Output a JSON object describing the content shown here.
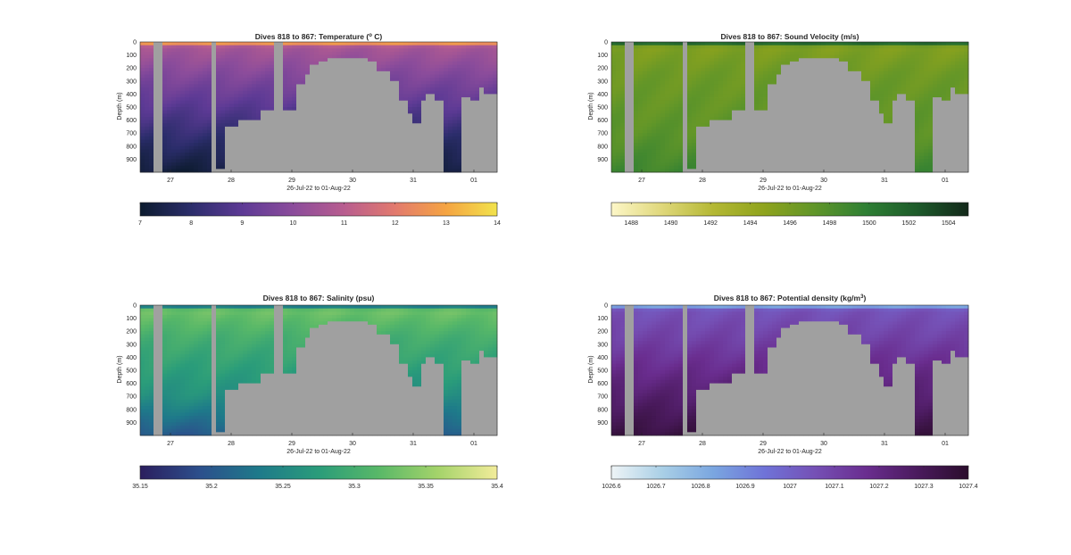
{
  "chart_data": [
    {
      "type": "heatmap",
      "title": "Dives 818 to 867: Temperature (",
      "title_sup": "o",
      "title_suffix": " C)",
      "xlabel": "26-Jul-22 to 01-Aug-22",
      "ylabel": "Depth (m)",
      "ylim": [
        1000,
        0
      ],
      "yticks": [
        0,
        100,
        200,
        300,
        400,
        500,
        600,
        700,
        800,
        900
      ],
      "xticks": [
        "27",
        "28",
        "29",
        "30",
        "31",
        "01"
      ],
      "colorbar": {
        "range": [
          7,
          14
        ],
        "ticks": [
          "7",
          "8",
          "9",
          "10",
          "11",
          "12",
          "13",
          "14"
        ],
        "colors": [
          "#0c1b2e",
          "#2b2d6b",
          "#5d3a95",
          "#8b4c9b",
          "#b85d8f",
          "#e27a6e",
          "#f5a442",
          "#f2e34c"
        ]
      },
      "variable": "temperature",
      "unit": "°C",
      "surface_value": 13.5,
      "upper_value": 10.6,
      "mid_value": 9.8,
      "deep_value": 8.2,
      "bottom_value": 7.2
    },
    {
      "type": "heatmap",
      "title": "Dives 818 to 867: Sound Velocity (m/s)",
      "xlabel": "26-Jul-22 to 01-Aug-22",
      "ylabel": "Depth (m)",
      "ylim": [
        1000,
        0
      ],
      "yticks": [
        0,
        100,
        200,
        300,
        400,
        500,
        600,
        700,
        800,
        900
      ],
      "xticks": [
        "27",
        "28",
        "29",
        "30",
        "31",
        "01"
      ],
      "colorbar": {
        "range": [
          1487,
          1505
        ],
        "ticks": [
          "1488",
          "1490",
          "1492",
          "1494",
          "1496",
          "1498",
          "1500",
          "1502",
          "1504"
        ],
        "colors": [
          "#fdf7c8",
          "#dfd77a",
          "#b4b834",
          "#8ea31d",
          "#5f9529",
          "#2e7f34",
          "#1d5a2a",
          "#13281a"
        ]
      },
      "variable": "sound_velocity",
      "unit": "m/s",
      "surface_value": 1504,
      "upper_value": 1495.5,
      "mid_value": 1496.5,
      "deep_value": 1497.5,
      "bottom_value": 1499
    },
    {
      "type": "heatmap",
      "title": "Dives 818 to 867: Salinity (psu)",
      "xlabel": "26-Jul-22 to 01-Aug-22",
      "ylabel": "Depth (m)",
      "ylim": [
        1000,
        0
      ],
      "yticks": [
        0,
        100,
        200,
        300,
        400,
        500,
        600,
        700,
        800,
        900
      ],
      "xticks": [
        "27",
        "28",
        "29",
        "30",
        "31",
        "01"
      ],
      "colorbar": {
        "range": [
          35.15,
          35.4
        ],
        "ticks": [
          "35.15",
          "35.2",
          "35.25",
          "35.3",
          "35.35",
          "35.4"
        ],
        "colors": [
          "#2b1e5e",
          "#2c4f8c",
          "#1e7a8a",
          "#2a9c7a",
          "#58b868",
          "#a4d36a",
          "#f2ec9a"
        ]
      },
      "variable": "salinity",
      "unit": "psu",
      "surface_value": 35.2,
      "upper_value": 35.33,
      "mid_value": 35.3,
      "deep_value": 35.26,
      "bottom_value": 35.2
    },
    {
      "type": "heatmap",
      "title": "Dives 818 to 867: Potential density (kg/m",
      "title_sup": "3",
      "title_suffix": ")",
      "xlabel": "26-Jul-22 to 01-Aug-22",
      "ylabel": "Depth (m)",
      "ylim": [
        1000,
        0
      ],
      "yticks": [
        0,
        100,
        200,
        300,
        400,
        500,
        600,
        700,
        800,
        900
      ],
      "xticks": [
        "27",
        "28",
        "29",
        "30",
        "31",
        "01"
      ],
      "colorbar": {
        "range": [
          1026.6,
          1027.4
        ],
        "ticks": [
          "1026.6",
          "1026.7",
          "1026.8",
          "1026.9",
          "1027",
          "1027.1",
          "1027.2",
          "1027.3",
          "1027.4"
        ],
        "colors": [
          "#eef4f6",
          "#a9cfe6",
          "#7aa6e0",
          "#6f73d8",
          "#7550b5",
          "#6a2d8f",
          "#4a1a5d",
          "#2b0d2c"
        ]
      },
      "variable": "potential_density",
      "unit": "kg/m3",
      "surface_value": 1026.75,
      "upper_value": 1027.05,
      "mid_value": 1027.1,
      "deep_value": 1027.25,
      "bottom_value": 1027.35
    }
  ],
  "colors": {
    "missing_data": "#a0a0a0"
  }
}
